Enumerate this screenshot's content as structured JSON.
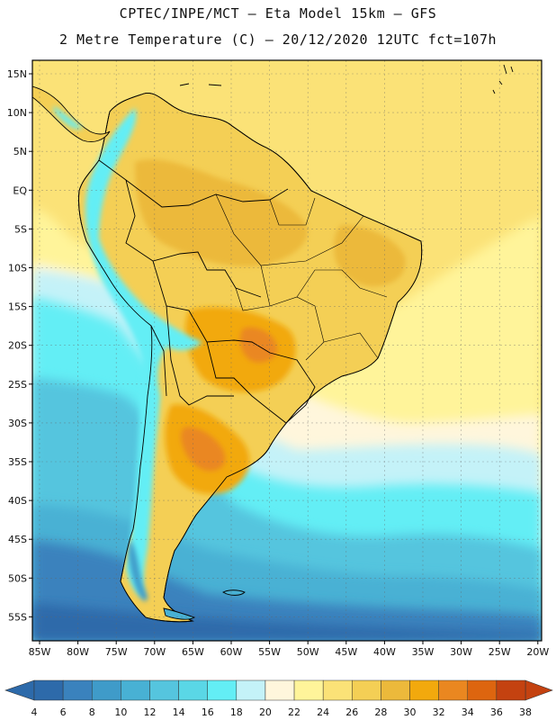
{
  "title": {
    "line1": "CPTEC/INPE/MCT –  Eta Model 15km – GFS",
    "line2": "2 Metre Temperature (C) – 20/12/2020 12UTC fct=107h"
  },
  "axes": {
    "lat_labels": [
      "15N",
      "10N",
      "5N",
      "EQ",
      "5S",
      "10S",
      "15S",
      "20S",
      "25S",
      "30S",
      "35S",
      "40S",
      "45S",
      "50S",
      "55S"
    ],
    "lon_labels": [
      "85W",
      "80W",
      "75W",
      "70W",
      "65W",
      "60W",
      "55W",
      "50W",
      "45W",
      "40W",
      "35W",
      "30W",
      "25W",
      "20W"
    ]
  },
  "colorbar": {
    "labels": [
      "4",
      "6",
      "8",
      "10",
      "12",
      "14",
      "16",
      "18",
      "20",
      "22",
      "24",
      "26",
      "28",
      "30",
      "32",
      "34",
      "36",
      "38"
    ],
    "colors": [
      "#2d6aaa",
      "#3a82bd",
      "#3f9bc9",
      "#48b1d4",
      "#55c5de",
      "#5ad7e6",
      "#63eef5",
      "#c4f2f8",
      "#fff6dc",
      "#fff49a",
      "#fbe277",
      "#f4cf55",
      "#ecb93b",
      "#f2a90d",
      "#ea8720",
      "#dd650f",
      "#c44210"
    ],
    "left_arrow_color": "#2d6aaa",
    "right_arrow_color": "#c44210"
  },
  "map_colors": {
    "ocean_south_deep": "#2d6aaa",
    "ocean_south": "#3a82bd",
    "ocean_mid": "#48b1d4",
    "ocean_cool": "#55c5de",
    "ocean_cyan": "#63eef5",
    "ocean_pale": "#c4f2f8",
    "ocean_cream": "#fff6dc",
    "ocean_yellow": "#fff49a",
    "ocean_warm": "#fbe277",
    "land_base": "#f4cf55",
    "land_warm": "#ecb93b",
    "land_hot": "#f2a90d",
    "land_hotter": "#ea8720",
    "andes": "#63eef5",
    "andes_cold": "#3f9bc9"
  }
}
